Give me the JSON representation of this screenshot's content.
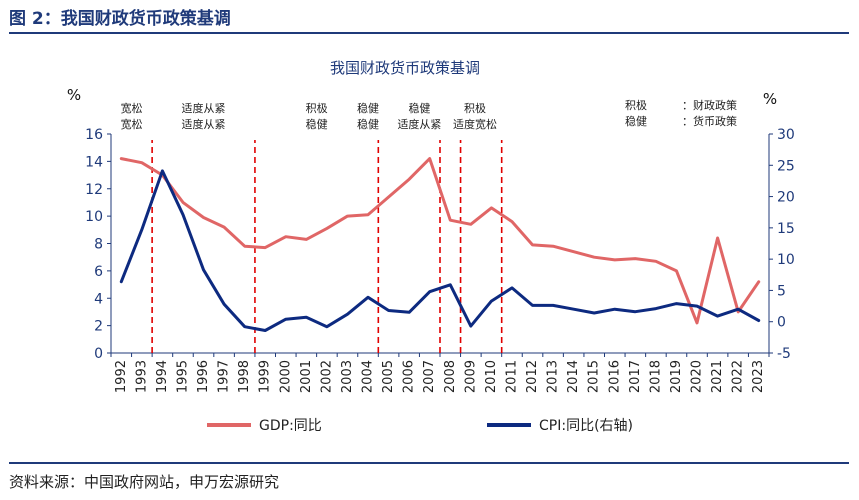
{
  "figure_label": "图 2：我国财政货币政策基调",
  "source": "资料来源：中国政府网站，申万宏源研究",
  "colors": {
    "gdp": "#e06666",
    "cpi": "#0d2a80",
    "divider": "#e00000",
    "axis": "#1f3a7a"
  },
  "chart_data": {
    "type": "line",
    "title": "我国财政货币政策基调",
    "left_unit": "%",
    "right_unit": "%",
    "x": [
      "1992",
      "1993",
      "1994",
      "1995",
      "1996",
      "1997",
      "1998",
      "1999",
      "2000",
      "2001",
      "2002",
      "2003",
      "2004",
      "2005",
      "2006",
      "2007",
      "2008",
      "2009",
      "2010",
      "2011",
      "2012",
      "2013",
      "2014",
      "2015",
      "2016",
      "2017",
      "2018",
      "2019",
      "2020",
      "2021",
      "2022",
      "2023"
    ],
    "y_left": {
      "min": 0,
      "max": 16,
      "ticks": [
        0,
        2,
        4,
        6,
        8,
        10,
        12,
        14,
        16
      ]
    },
    "y_right": {
      "min": -5,
      "max": 30,
      "ticks": [
        -5,
        0,
        5,
        10,
        15,
        20,
        25,
        30
      ]
    },
    "series": [
      {
        "name": "GDP:同比",
        "axis": "left",
        "values": [
          14.2,
          13.9,
          13.0,
          11.0,
          9.9,
          9.2,
          7.8,
          7.7,
          8.5,
          8.3,
          9.1,
          10.0,
          10.1,
          11.4,
          12.7,
          14.2,
          9.7,
          9.4,
          10.6,
          9.6,
          7.9,
          7.8,
          7.4,
          7.0,
          6.8,
          6.9,
          6.7,
          6.0,
          2.2,
          8.4,
          3.0,
          5.2
        ]
      },
      {
        "name": "CPI:同比(右轴)",
        "axis": "right",
        "values": [
          6.4,
          14.7,
          24.1,
          17.1,
          8.3,
          2.8,
          -0.8,
          -1.4,
          0.4,
          0.7,
          -0.8,
          1.2,
          3.9,
          1.8,
          1.5,
          4.8,
          5.9,
          -0.7,
          3.3,
          5.4,
          2.6,
          2.6,
          2.0,
          1.4,
          2.0,
          1.6,
          2.1,
          2.9,
          2.5,
          0.9,
          2.0,
          0.2
        ]
      }
    ],
    "dividers": [
      "1993.5",
      "1998.5",
      "2004.5",
      "2007.5",
      "2008.5",
      "2010.5"
    ],
    "annotations": [
      {
        "x": 1992.5,
        "lines": [
          "宽松",
          "宽松"
        ]
      },
      {
        "x": 1996.0,
        "lines": [
          "适度从紧",
          "适度从紧"
        ]
      },
      {
        "x": 2001.5,
        "lines": [
          "积极",
          "稳健"
        ]
      },
      {
        "x": 2004.0,
        "lines": [
          "稳健",
          "稳健"
        ]
      },
      {
        "x": 2006.5,
        "lines": [
          "稳健",
          "适度从紧"
        ]
      },
      {
        "x": 2009.2,
        "lines": [
          "积极",
          "适度宽松"
        ]
      }
    ],
    "legend_note": {
      "rows": [
        [
          "积极",
          "：财政政策"
        ],
        [
          "稳健",
          "：货币政策"
        ]
      ]
    },
    "legend": [
      {
        "series": 0,
        "label": "GDP:同比"
      },
      {
        "series": 1,
        "label": "CPI:同比(右轴)"
      }
    ]
  }
}
